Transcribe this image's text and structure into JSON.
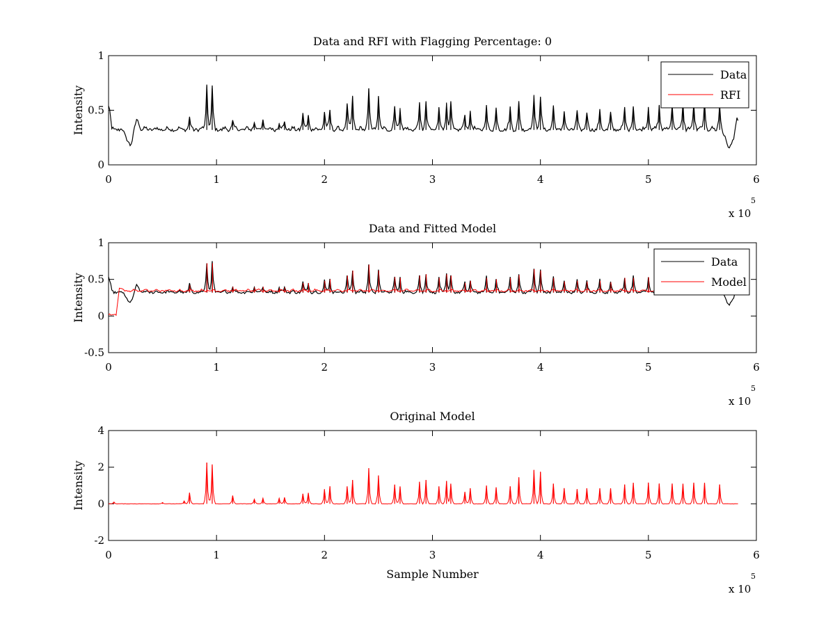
{
  "chart_data": [
    {
      "type": "line",
      "title": "Data and RFI with Flagging Percentage: 0",
      "xlabel": "",
      "ylabel": "Intensity",
      "xlim": [
        0,
        600000
      ],
      "ylim": [
        0,
        1
      ],
      "xticks": [
        0,
        1,
        2,
        3,
        4,
        5,
        6
      ],
      "yticks": [
        "0",
        "0.5",
        "1"
      ],
      "ytick_values": [
        0,
        0.5,
        1
      ],
      "xexponent": "x 10",
      "xexponent_power": "5",
      "legend_position": "top-right",
      "baseline": 0.32,
      "series": [
        {
          "name": "Data",
          "color": "#000000"
        },
        {
          "name": "RFI",
          "color": "#ff0000"
        }
      ],
      "features": {
        "start_peak": 0.55,
        "dip1": {
          "x": 20000,
          "y": 0.18
        },
        "bump": {
          "x": 26000,
          "y": 0.45
        },
        "dip2": {
          "x": 575000,
          "y": 0.15
        },
        "end_bump": {
          "x": 582000,
          "y": 0.43
        },
        "end_x": 583000
      },
      "peaks": [
        [
          75000,
          0.42
        ],
        [
          91000,
          0.72
        ],
        [
          96000,
          0.7
        ],
        [
          115000,
          0.4
        ],
        [
          135000,
          0.39
        ],
        [
          143000,
          0.4
        ],
        [
          158000,
          0.38
        ],
        [
          163000,
          0.39
        ],
        [
          180000,
          0.45
        ],
        [
          185000,
          0.45
        ],
        [
          200000,
          0.48
        ],
        [
          205000,
          0.5
        ],
        [
          221000,
          0.55
        ],
        [
          226000,
          0.62
        ],
        [
          241000,
          0.7
        ],
        [
          250000,
          0.62
        ],
        [
          265000,
          0.53
        ],
        [
          270000,
          0.52
        ],
        [
          288000,
          0.55
        ],
        [
          294000,
          0.57
        ],
        [
          306000,
          0.52
        ],
        [
          313000,
          0.57
        ],
        [
          317000,
          0.55
        ],
        [
          330000,
          0.45
        ],
        [
          335000,
          0.48
        ],
        [
          350000,
          0.52
        ],
        [
          359000,
          0.5
        ],
        [
          372000,
          0.52
        ],
        [
          380000,
          0.56
        ],
        [
          394000,
          0.64
        ],
        [
          400000,
          0.62
        ],
        [
          412000,
          0.52
        ],
        [
          422000,
          0.47
        ],
        [
          434000,
          0.48
        ],
        [
          443000,
          0.47
        ],
        [
          455000,
          0.48
        ],
        [
          465000,
          0.46
        ],
        [
          478000,
          0.52
        ],
        [
          486000,
          0.52
        ],
        [
          500000,
          0.53
        ],
        [
          510000,
          0.54
        ],
        [
          522000,
          0.56
        ],
        [
          532000,
          0.56
        ],
        [
          542000,
          0.56
        ],
        [
          552000,
          0.56
        ],
        [
          566000,
          0.55
        ]
      ]
    },
    {
      "type": "line",
      "title": "Data and Fitted Model",
      "xlabel": "",
      "ylabel": "Intensity",
      "xlim": [
        0,
        600000
      ],
      "ylim": [
        -0.5,
        1
      ],
      "xticks": [
        0,
        1,
        2,
        3,
        4,
        5,
        6
      ],
      "yticks": [
        "-0.5",
        "0",
        "0.5",
        "1"
      ],
      "ytick_values": [
        -0.5,
        0,
        0.5,
        1
      ],
      "xexponent": "x 10",
      "xexponent_power": "5",
      "legend_position": "top-right",
      "baseline": 0.32,
      "series": [
        {
          "name": "Data",
          "color": "#000000"
        },
        {
          "name": "Model",
          "color": "#ff0000"
        }
      ],
      "model_start": {
        "flat_until": 7000,
        "flat_y": 0.01,
        "rise_x": 10000,
        "rise_y": 0.38
      },
      "features": {
        "start_peak": 0.55,
        "dip1": {
          "x": 20000,
          "y": 0.18
        },
        "bump": {
          "x": 26000,
          "y": 0.45
        },
        "dip2": {
          "x": 575000,
          "y": 0.15
        },
        "end_bump": {
          "x": 582000,
          "y": 0.43
        },
        "end_x": 583000
      },
      "peaks": [
        [
          75000,
          0.42
        ],
        [
          91000,
          0.72
        ],
        [
          96000,
          0.72
        ],
        [
          115000,
          0.4
        ],
        [
          135000,
          0.39
        ],
        [
          143000,
          0.4
        ],
        [
          158000,
          0.38
        ],
        [
          163000,
          0.39
        ],
        [
          180000,
          0.45
        ],
        [
          185000,
          0.45
        ],
        [
          200000,
          0.48
        ],
        [
          205000,
          0.5
        ],
        [
          221000,
          0.55
        ],
        [
          226000,
          0.62
        ],
        [
          241000,
          0.7
        ],
        [
          250000,
          0.62
        ],
        [
          265000,
          0.53
        ],
        [
          270000,
          0.52
        ],
        [
          288000,
          0.55
        ],
        [
          294000,
          0.57
        ],
        [
          306000,
          0.52
        ],
        [
          313000,
          0.57
        ],
        [
          317000,
          0.55
        ],
        [
          330000,
          0.45
        ],
        [
          335000,
          0.48
        ],
        [
          350000,
          0.52
        ],
        [
          359000,
          0.5
        ],
        [
          372000,
          0.52
        ],
        [
          380000,
          0.56
        ],
        [
          394000,
          0.64
        ],
        [
          400000,
          0.62
        ],
        [
          412000,
          0.52
        ],
        [
          422000,
          0.47
        ],
        [
          434000,
          0.48
        ],
        [
          443000,
          0.47
        ],
        [
          455000,
          0.48
        ],
        [
          465000,
          0.46
        ],
        [
          478000,
          0.52
        ],
        [
          486000,
          0.52
        ],
        [
          500000,
          0.53
        ],
        [
          510000,
          0.54
        ]
      ]
    },
    {
      "type": "line",
      "title": "Original Model",
      "xlabel": "Sample Number",
      "ylabel": "Intensity",
      "xlim": [
        0,
        600000
      ],
      "ylim": [
        -2,
        4
      ],
      "xticks": [
        0,
        1,
        2,
        3,
        4,
        5,
        6
      ],
      "yticks": [
        "-2",
        "0",
        "2",
        "4"
      ],
      "ytick_values": [
        -2,
        0,
        2,
        4
      ],
      "xexponent": "x 10",
      "xexponent_power": "5",
      "baseline": 0.0,
      "series": [
        {
          "color": "#ff0000"
        }
      ],
      "end_x": 583000,
      "peaks": [
        [
          5000,
          0.1
        ],
        [
          50000,
          0.08
        ],
        [
          70000,
          0.15
        ],
        [
          75000,
          0.6
        ],
        [
          91000,
          2.25
        ],
        [
          96000,
          2.15
        ],
        [
          115000,
          0.45
        ],
        [
          135000,
          0.25
        ],
        [
          143000,
          0.3
        ],
        [
          158000,
          0.3
        ],
        [
          163000,
          0.35
        ],
        [
          180000,
          0.55
        ],
        [
          185000,
          0.6
        ],
        [
          200000,
          0.8
        ],
        [
          205000,
          0.95
        ],
        [
          221000,
          0.95
        ],
        [
          226000,
          1.3
        ],
        [
          241000,
          1.95
        ],
        [
          250000,
          1.55
        ],
        [
          265000,
          1.05
        ],
        [
          270000,
          0.95
        ],
        [
          288000,
          1.2
        ],
        [
          294000,
          1.3
        ],
        [
          306000,
          0.95
        ],
        [
          313000,
          1.25
        ],
        [
          317000,
          1.1
        ],
        [
          330000,
          0.65
        ],
        [
          335000,
          0.85
        ],
        [
          350000,
          1.0
        ],
        [
          359000,
          0.9
        ],
        [
          372000,
          0.95
        ],
        [
          380000,
          1.45
        ],
        [
          394000,
          1.85
        ],
        [
          400000,
          1.75
        ],
        [
          412000,
          1.1
        ],
        [
          422000,
          0.85
        ],
        [
          434000,
          0.8
        ],
        [
          443000,
          0.85
        ],
        [
          455000,
          0.85
        ],
        [
          465000,
          0.85
        ],
        [
          478000,
          1.05
        ],
        [
          486000,
          1.15
        ],
        [
          500000,
          1.15
        ],
        [
          510000,
          1.1
        ],
        [
          522000,
          1.1
        ],
        [
          532000,
          1.1
        ],
        [
          542000,
          1.15
        ],
        [
          552000,
          1.15
        ],
        [
          566000,
          1.05
        ]
      ]
    }
  ]
}
